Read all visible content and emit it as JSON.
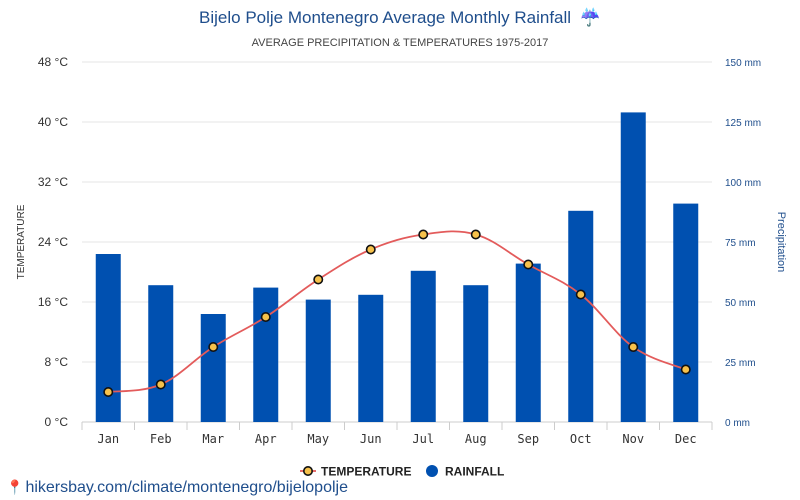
{
  "header": {
    "title": "Bijelo Polje Montenegro Average Monthly Rainfall",
    "title_icon": "umbrella-rain-icon",
    "subtitle": "AVERAGE PRECIPITATION & TEMPERATURES 1975-2017"
  },
  "chart_data": {
    "type": "bar",
    "categories": [
      "Jan",
      "Feb",
      "Mar",
      "Apr",
      "May",
      "Jun",
      "Jul",
      "Aug",
      "Sep",
      "Oct",
      "Nov",
      "Dec"
    ],
    "series": [
      {
        "name": "RAINFALL",
        "type": "bar",
        "axis": "right",
        "color": "#0050b0",
        "values": [
          70,
          57,
          45,
          56,
          51,
          53,
          63,
          57,
          66,
          88,
          129,
          91
        ]
      },
      {
        "name": "TEMPERATURE",
        "type": "line",
        "axis": "left",
        "line_color": "#e35b5b",
        "marker_fill": "#f6c14b",
        "values": [
          4,
          5,
          10,
          14,
          19,
          23,
          25,
          25,
          21,
          17,
          10,
          7
        ]
      }
    ],
    "y_left": {
      "label": "TEMPERATURE",
      "range": [
        0,
        48
      ],
      "ticks": [
        0,
        8,
        16,
        24,
        32,
        40,
        48
      ],
      "tick_labels": [
        "0 °C",
        "8 °C",
        "16 °C",
        "24 °C",
        "32 °C",
        "40 °C",
        "48 °C"
      ]
    },
    "y_right": {
      "label": "Precipitation",
      "range": [
        0,
        150
      ],
      "ticks": [
        0,
        25,
        50,
        75,
        100,
        125,
        150
      ],
      "tick_labels": [
        "0 mm",
        "25 mm",
        "50 mm",
        "75 mm",
        "100 mm",
        "125 mm",
        "150 mm"
      ]
    },
    "grid": true,
    "legend": {
      "placement": "bottom-center",
      "items": [
        "TEMPERATURE",
        "RAINFALL"
      ]
    }
  },
  "footer": {
    "source_text": "hikersbay.com/climate/montenegro/bijelopolje",
    "source_icon": "location-pin-icon"
  }
}
